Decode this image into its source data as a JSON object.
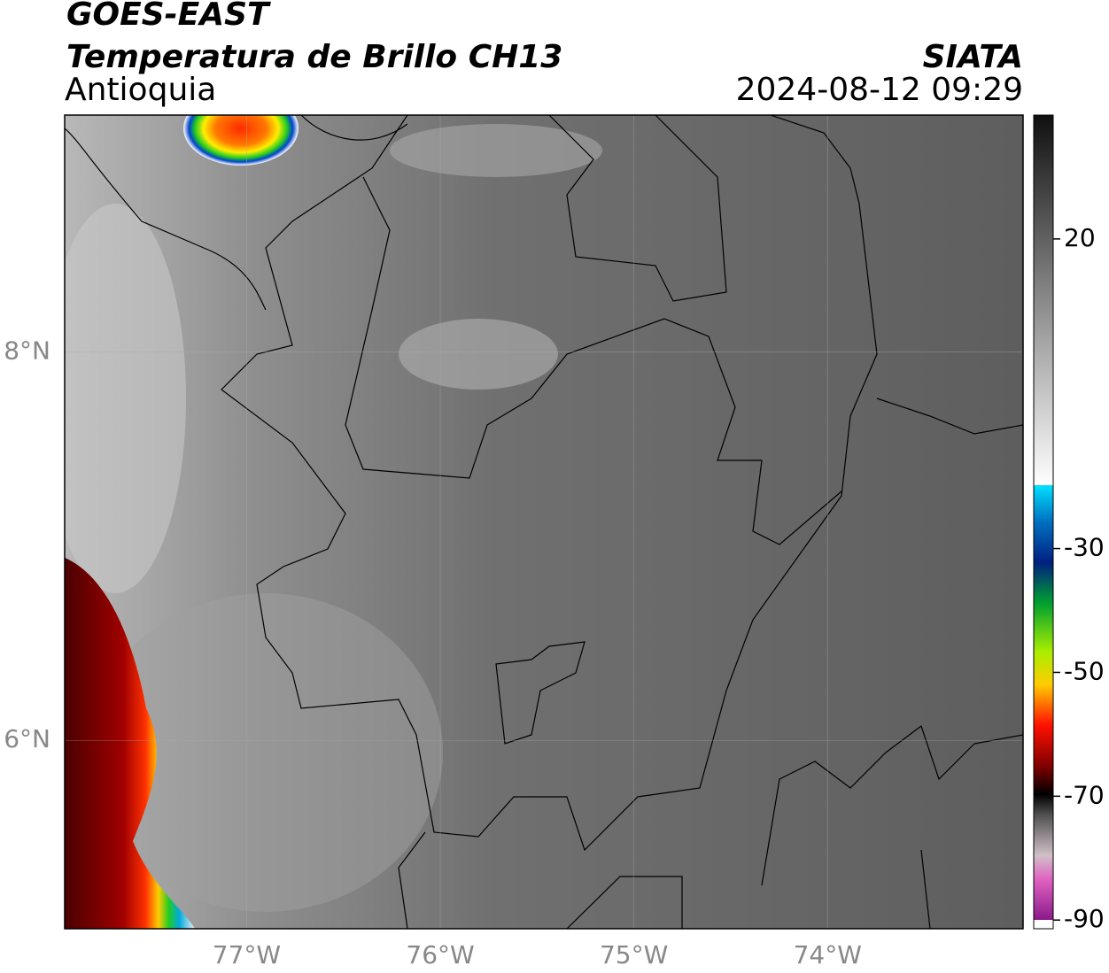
{
  "title": "GOES-EAST",
  "subtitle": "Temperatura de Brillo CH13",
  "region": "Antioquia",
  "source": "SIATA",
  "datetime": "2024-08-12 09:29",
  "map": {
    "xlim": [
      -77.94,
      -72.99
    ],
    "ylim": [
      5.03,
      9.22
    ],
    "xticks": [
      {
        "value": -77,
        "label": "77°W"
      },
      {
        "value": -76,
        "label": "76°W"
      },
      {
        "value": -75,
        "label": "75°W"
      },
      {
        "value": -74,
        "label": "74°W"
      }
    ],
    "yticks": [
      {
        "value": 6,
        "label": "6°N"
      },
      {
        "value": 8,
        "label": "8°N"
      }
    ],
    "grid": true
  },
  "colorbar": {
    "lim": [
      -91.4,
      40
    ],
    "ticks": [
      20,
      -30,
      -50,
      -70,
      -90
    ]
  }
}
